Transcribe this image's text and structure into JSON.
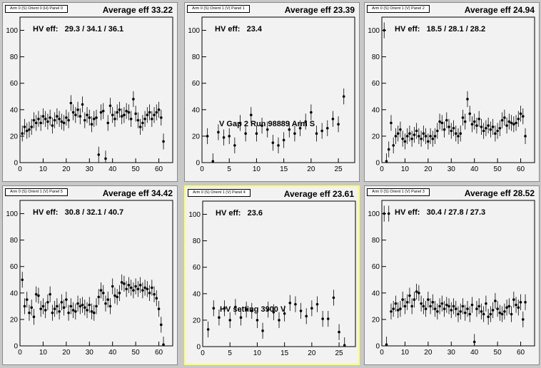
{
  "chart_data": [
    {
      "type": "scatter",
      "title": "Arm 0 (S) Orient 0 (H) Panel 0",
      "average_label": "Average eff 33.22",
      "hv_label": "HV eff:   29.3 / 34.1 / 36.1",
      "xlim": [
        0,
        66
      ],
      "ylim": [
        0,
        110
      ],
      "xticks": [
        0,
        10,
        20,
        30,
        40,
        50,
        60
      ],
      "yticks": [
        0,
        20,
        40,
        60,
        80,
        100
      ],
      "points": [
        [
          1,
          22
        ],
        [
          2,
          27
        ],
        [
          3,
          24
        ],
        [
          4,
          25
        ],
        [
          5,
          27
        ],
        [
          6,
          32
        ],
        [
          7,
          30
        ],
        [
          8,
          33
        ],
        [
          9,
          30
        ],
        [
          10,
          35
        ],
        [
          11,
          33
        ],
        [
          12,
          31
        ],
        [
          13,
          34
        ],
        [
          14,
          28
        ],
        [
          15,
          32
        ],
        [
          16,
          35
        ],
        [
          17,
          33
        ],
        [
          18,
          31
        ],
        [
          19,
          30
        ],
        [
          20,
          34
        ],
        [
          21,
          32
        ],
        [
          22,
          45
        ],
        [
          23,
          38
        ],
        [
          24,
          36
        ],
        [
          25,
          40
        ],
        [
          26,
          35
        ],
        [
          27,
          44
        ],
        [
          28,
          32
        ],
        [
          29,
          36
        ],
        [
          30,
          34
        ],
        [
          31,
          29
        ],
        [
          32,
          33
        ],
        [
          33,
          34
        ],
        [
          34,
          6
        ],
        [
          35,
          38
        ],
        [
          36,
          39
        ],
        [
          37,
          3
        ],
        [
          38,
          30
        ],
        [
          39,
          43
        ],
        [
          40,
          36
        ],
        [
          41,
          33
        ],
        [
          42,
          38
        ],
        [
          43,
          40
        ],
        [
          44,
          35
        ],
        [
          45,
          36
        ],
        [
          46,
          39
        ],
        [
          47,
          38
        ],
        [
          48,
          33
        ],
        [
          49,
          48
        ],
        [
          50,
          37
        ],
        [
          51,
          32
        ],
        [
          52,
          27
        ],
        [
          53,
          30
        ],
        [
          54,
          33
        ],
        [
          55,
          36
        ],
        [
          56,
          38
        ],
        [
          57,
          33
        ],
        [
          58,
          36
        ],
        [
          59,
          38
        ],
        [
          60,
          40
        ],
        [
          61,
          34
        ],
        [
          62,
          16
        ]
      ],
      "annotations": []
    },
    {
      "type": "scatter",
      "title": "Arm 0 (S) Orient 1 (V) Panel 1",
      "average_label": "Average eff 23.39",
      "hv_label": "HV eff:   23.4",
      "xlim": [
        0,
        28
      ],
      "ylim": [
        0,
        110
      ],
      "xticks": [
        0,
        5,
        10,
        15,
        20,
        25
      ],
      "yticks": [
        0,
        20,
        40,
        60,
        80,
        100
      ],
      "points": [
        [
          1,
          20
        ],
        [
          2,
          1
        ],
        [
          3,
          23
        ],
        [
          4,
          19
        ],
        [
          5,
          20
        ],
        [
          6,
          13
        ],
        [
          7,
          30
        ],
        [
          8,
          22
        ],
        [
          9,
          36
        ],
        [
          10,
          22
        ],
        [
          11,
          28
        ],
        [
          12,
          25
        ],
        [
          13,
          15
        ],
        [
          14,
          13
        ],
        [
          15,
          17
        ],
        [
          16,
          25
        ],
        [
          17,
          22
        ],
        [
          18,
          26
        ],
        [
          19,
          31
        ],
        [
          20,
          38
        ],
        [
          21,
          22
        ],
        [
          22,
          24
        ],
        [
          23,
          26
        ],
        [
          24,
          33
        ],
        [
          25,
          29
        ],
        [
          26,
          50
        ]
      ],
      "annotations": [
        {
          "text": "V Gap 2 Run 98889 Arm S"
        }
      ]
    },
    {
      "type": "scatter",
      "title": "Arm 0 (S) Orient 1 (V) Panel 2",
      "average_label": "Average eff 24.94",
      "hv_label": "HV eff:   18.5 / 28.1 / 28.2",
      "xlim": [
        0,
        66
      ],
      "ylim": [
        0,
        110
      ],
      "xticks": [
        0,
        10,
        20,
        30,
        40,
        50,
        60
      ],
      "yticks": [
        0,
        20,
        40,
        60,
        80,
        100
      ],
      "points": [
        [
          1,
          100
        ],
        [
          2,
          1
        ],
        [
          3,
          10
        ],
        [
          4,
          30
        ],
        [
          5,
          13
        ],
        [
          6,
          20
        ],
        [
          7,
          22
        ],
        [
          8,
          25
        ],
        [
          9,
          18
        ],
        [
          10,
          16
        ],
        [
          11,
          20
        ],
        [
          12,
          22
        ],
        [
          13,
          18
        ],
        [
          14,
          21
        ],
        [
          15,
          24
        ],
        [
          16,
          20
        ],
        [
          17,
          18
        ],
        [
          18,
          22
        ],
        [
          19,
          20
        ],
        [
          20,
          16
        ],
        [
          21,
          20
        ],
        [
          22,
          18
        ],
        [
          23,
          20
        ],
        [
          24,
          24
        ],
        [
          25,
          31
        ],
        [
          26,
          30
        ],
        [
          27,
          25
        ],
        [
          28,
          32
        ],
        [
          29,
          27
        ],
        [
          30,
          24
        ],
        [
          31,
          26
        ],
        [
          32,
          22
        ],
        [
          33,
          20
        ],
        [
          34,
          22
        ],
        [
          35,
          34
        ],
        [
          36,
          31
        ],
        [
          37,
          48
        ],
        [
          38,
          37
        ],
        [
          39,
          29
        ],
        [
          40,
          31
        ],
        [
          41,
          28
        ],
        [
          42,
          33
        ],
        [
          43,
          27
        ],
        [
          44,
          24
        ],
        [
          45,
          26
        ],
        [
          46,
          28
        ],
        [
          47,
          25
        ],
        [
          48,
          27
        ],
        [
          49,
          22
        ],
        [
          50,
          24
        ],
        [
          51,
          26
        ],
        [
          52,
          32
        ],
        [
          53,
          34
        ],
        [
          54,
          28
        ],
        [
          55,
          31
        ],
        [
          56,
          30
        ],
        [
          57,
          29
        ],
        [
          58,
          30
        ],
        [
          59,
          33
        ],
        [
          60,
          37
        ],
        [
          61,
          35
        ],
        [
          62,
          20
        ]
      ],
      "annotations": []
    },
    {
      "type": "scatter",
      "title": "Arm 0 (S) Orient 1 (V) Panel 5",
      "average_label": "Average eff 34.42",
      "hv_label": "HV eff:   30.8 / 32.1 / 40.7",
      "xlim": [
        0,
        66
      ],
      "ylim": [
        0,
        110
      ],
      "xticks": [
        0,
        10,
        20,
        30,
        40,
        50,
        60
      ],
      "yticks": [
        0,
        20,
        40,
        60,
        80,
        100
      ],
      "points": [
        [
          1,
          50
        ],
        [
          2,
          30
        ],
        [
          3,
          35
        ],
        [
          4,
          25
        ],
        [
          5,
          29
        ],
        [
          6,
          22
        ],
        [
          7,
          39
        ],
        [
          8,
          38
        ],
        [
          9,
          28
        ],
        [
          10,
          30
        ],
        [
          11,
          27
        ],
        [
          12,
          33
        ],
        [
          13,
          39
        ],
        [
          14,
          25
        ],
        [
          15,
          28
        ],
        [
          16,
          30
        ],
        [
          17,
          26
        ],
        [
          18,
          33
        ],
        [
          19,
          29
        ],
        [
          20,
          35
        ],
        [
          21,
          25
        ],
        [
          22,
          30
        ],
        [
          23,
          27
        ],
        [
          24,
          26
        ],
        [
          25,
          32
        ],
        [
          26,
          30
        ],
        [
          27,
          31
        ],
        [
          28,
          29
        ],
        [
          29,
          27
        ],
        [
          30,
          31
        ],
        [
          31,
          26
        ],
        [
          32,
          25
        ],
        [
          33,
          30
        ],
        [
          34,
          37
        ],
        [
          35,
          42
        ],
        [
          36,
          40
        ],
        [
          37,
          32
        ],
        [
          38,
          35
        ],
        [
          39,
          30
        ],
        [
          40,
          45
        ],
        [
          41,
          38
        ],
        [
          42,
          37
        ],
        [
          43,
          40
        ],
        [
          44,
          48
        ],
        [
          45,
          47
        ],
        [
          46,
          43
        ],
        [
          47,
          46
        ],
        [
          48,
          44
        ],
        [
          49,
          42
        ],
        [
          50,
          45
        ],
        [
          51,
          43
        ],
        [
          52,
          46
        ],
        [
          53,
          42
        ],
        [
          54,
          44
        ],
        [
          55,
          43
        ],
        [
          56,
          40
        ],
        [
          57,
          44
        ],
        [
          58,
          39
        ],
        [
          59,
          36
        ],
        [
          60,
          28
        ],
        [
          61,
          16
        ],
        [
          62,
          1
        ]
      ],
      "annotations": []
    },
    {
      "type": "scatter",
      "title": "Arm 0 (S) Orient 1 (V) Panel 4",
      "average_label": "Average eff 23.61",
      "hv_label": "HV eff:   23.6",
      "xlim": [
        0,
        28
      ],
      "ylim": [
        0,
        110
      ],
      "xticks": [
        0,
        5,
        10,
        15,
        20,
        25
      ],
      "yticks": [
        0,
        20,
        40,
        60,
        80,
        100
      ],
      "points": [
        [
          1,
          13
        ],
        [
          2,
          29
        ],
        [
          3,
          22
        ],
        [
          4,
          29
        ],
        [
          5,
          20
        ],
        [
          6,
          30
        ],
        [
          7,
          22
        ],
        [
          8,
          28
        ],
        [
          9,
          27
        ],
        [
          10,
          20
        ],
        [
          11,
          12
        ],
        [
          12,
          28
        ],
        [
          13,
          26
        ],
        [
          14,
          20
        ],
        [
          15,
          25
        ],
        [
          16,
          33
        ],
        [
          17,
          32
        ],
        [
          18,
          27
        ],
        [
          19,
          23
        ],
        [
          20,
          29
        ],
        [
          21,
          32
        ],
        [
          22,
          21
        ],
        [
          23,
          21
        ],
        [
          24,
          37
        ],
        [
          25,
          11
        ],
        [
          26,
          1
        ]
      ],
      "annotations": [
        {
          "text": "HV setting 3900 V"
        }
      ]
    },
    {
      "type": "scatter",
      "title": "Arm 0 (S) Orient 1 (V) Panel 3",
      "average_label": "Average eff 28.52",
      "hv_label": "HV eff:   30.4 / 27.8 / 27.3",
      "xlim": [
        0,
        66
      ],
      "ylim": [
        0,
        110
      ],
      "xticks": [
        0,
        10,
        20,
        30,
        40,
        50,
        60
      ],
      "yticks": [
        0,
        20,
        40,
        60,
        80,
        100
      ],
      "points": [
        [
          1,
          100
        ],
        [
          2,
          1
        ],
        [
          3,
          100
        ],
        [
          4,
          26
        ],
        [
          5,
          28
        ],
        [
          6,
          32
        ],
        [
          7,
          27
        ],
        [
          8,
          28
        ],
        [
          9,
          35
        ],
        [
          10,
          30
        ],
        [
          11,
          33
        ],
        [
          12,
          38
        ],
        [
          13,
          30
        ],
        [
          14,
          35
        ],
        [
          15,
          41
        ],
        [
          16,
          40
        ],
        [
          17,
          32
        ],
        [
          18,
          30
        ],
        [
          19,
          28
        ],
        [
          20,
          35
        ],
        [
          21,
          30
        ],
        [
          22,
          33
        ],
        [
          23,
          28
        ],
        [
          24,
          26
        ],
        [
          25,
          30
        ],
        [
          26,
          32
        ],
        [
          27,
          28
        ],
        [
          28,
          31
        ],
        [
          29,
          30
        ],
        [
          30,
          27
        ],
        [
          31,
          30
        ],
        [
          32,
          28
        ],
        [
          33,
          24
        ],
        [
          34,
          26
        ],
        [
          35,
          30
        ],
        [
          36,
          25
        ],
        [
          37,
          28
        ],
        [
          38,
          24
        ],
        [
          39,
          31
        ],
        [
          40,
          3
        ],
        [
          41,
          28
        ],
        [
          42,
          30
        ],
        [
          43,
          26
        ],
        [
          44,
          24
        ],
        [
          45,
          32
        ],
        [
          46,
          22
        ],
        [
          47,
          24
        ],
        [
          48,
          27
        ],
        [
          49,
          34
        ],
        [
          50,
          28
        ],
        [
          51,
          25
        ],
        [
          52,
          24
        ],
        [
          53,
          26
        ],
        [
          54,
          29
        ],
        [
          55,
          30
        ],
        [
          56,
          24
        ],
        [
          57,
          35
        ],
        [
          58,
          31
        ],
        [
          59,
          29
        ],
        [
          60,
          33
        ],
        [
          61,
          20
        ],
        [
          62,
          33
        ]
      ],
      "annotations": []
    }
  ]
}
